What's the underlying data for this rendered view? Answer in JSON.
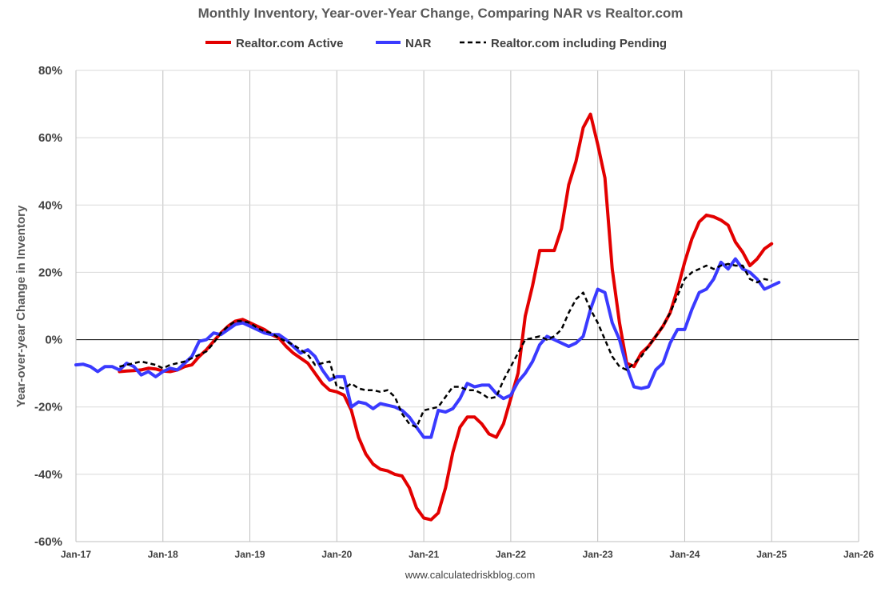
{
  "chart_data": {
    "type": "line",
    "title": "Monthly Inventory, Year-over-Year Change, Comparing NAR vs Realtor.com",
    "ylabel": "Year-over-year Change in Inventory",
    "xlabel": "",
    "source": "www.calculatedriskblog.com",
    "xlim": [
      "Jan-17",
      "Jan-26"
    ],
    "ylim": [
      -60,
      80
    ],
    "yticks": [
      80,
      60,
      40,
      20,
      0,
      -20,
      -40,
      -60
    ],
    "ytick_labels": [
      "80%",
      "60%",
      "40%",
      "20%",
      "0%",
      "-20%",
      "-40%",
      "-60%"
    ],
    "xtick_labels": [
      "Jan-17",
      "Jan-18",
      "Jan-19",
      "Jan-20",
      "Jan-21",
      "Jan-22",
      "Jan-23",
      "Jan-24",
      "Jan-25",
      "Jan-26"
    ],
    "grid": "vertical",
    "legend_position": "top",
    "series": [
      {
        "name": "Realtor.com Active",
        "color": "#e30000",
        "style": "solid",
        "start_month": "Jul-17",
        "values": [
          -9.5,
          -9.3,
          -9.2,
          -9.0,
          -8.5,
          -8.7,
          -9.3,
          -9.5,
          -9.0,
          -8.0,
          -7.5,
          -5.0,
          -3.0,
          -0.5,
          2.0,
          4.0,
          5.5,
          6.0,
          5.0,
          4.0,
          3.0,
          1.5,
          0.5,
          -2.0,
          -4.0,
          -5.5,
          -7.0,
          -10.0,
          -13.0,
          -15.0,
          -15.5,
          -16.5,
          -21.0,
          -29.0,
          -34.0,
          -37.0,
          -38.5,
          -39.0,
          -40.0,
          -40.5,
          -44.0,
          -50.0,
          -53.0,
          -53.5,
          -51.5,
          -44.0,
          -33.5,
          -26.0,
          -23.0,
          -23.0,
          -25.0,
          -28.0,
          -29.0,
          -25.0,
          -17.5,
          -10.0,
          7.0,
          16.0,
          26.5,
          26.5,
          26.5,
          33.0,
          46.0,
          53.0,
          63.0,
          67.0,
          58.0,
          48.0,
          21.0,
          5.0,
          -7.0,
          -8.0,
          -4.0,
          -2.0,
          1.0,
          4.0,
          8.0,
          15.0,
          23.0,
          30.0,
          35.0,
          37.0,
          36.5,
          35.5,
          34.0,
          29.0,
          26.0,
          22.0,
          24.0,
          27.0,
          28.5
        ]
      },
      {
        "name": "NAR",
        "color": "#3a3aff",
        "style": "solid",
        "start_month": "Jan-17",
        "values": [
          -7.5,
          -7.3,
          -8.0,
          -9.5,
          -8.0,
          -8.0,
          -9.0,
          -7.0,
          -8.0,
          -10.5,
          -9.5,
          -11.0,
          -9.5,
          -8.5,
          -9.0,
          -7.0,
          -5.0,
          -0.5,
          0.0,
          2.0,
          1.5,
          3.0,
          4.5,
          5.0,
          4.0,
          3.0,
          2.0,
          1.5,
          1.5,
          0.0,
          -2.0,
          -4.0,
          -3.0,
          -5.0,
          -9.0,
          -12.0,
          -11.0,
          -11.0,
          -20.0,
          -18.5,
          -19.0,
          -20.5,
          -19.0,
          -19.5,
          -20.0,
          -21.0,
          -23.0,
          -26.0,
          -29.0,
          -29.0,
          -21.0,
          -21.5,
          -20.5,
          -17.5,
          -13.0,
          -14.0,
          -13.5,
          -13.5,
          -16.0,
          -17.5,
          -16.5,
          -12.5,
          -10.0,
          -6.5,
          -1.5,
          1.0,
          0.0,
          -1.0,
          -2.0,
          -1.0,
          1.0,
          9.0,
          15.0,
          14.0,
          5.0,
          0.0,
          -8.0,
          -14.0,
          -14.5,
          -14.0,
          -9.0,
          -7.0,
          -1.0,
          3.0,
          3.0,
          9.0,
          14.0,
          15.0,
          18.0,
          23.0,
          21.0,
          24.0,
          21.0,
          20.0,
          18.0,
          15.0,
          16.0,
          17.0
        ]
      },
      {
        "name": "Realtor.com including Pending",
        "color": "#000000",
        "style": "dashed",
        "start_month": "Jul-17",
        "values": [
          -8.0,
          -7.5,
          -7.0,
          -6.5,
          -7.0,
          -7.5,
          -8.5,
          -7.5,
          -7.0,
          -6.5,
          -5.5,
          -4.5,
          -3.5,
          -1.0,
          2.0,
          4.0,
          5.5,
          5.5,
          5.0,
          3.5,
          2.5,
          2.0,
          0.5,
          -0.5,
          -1.5,
          -3.0,
          -4.5,
          -7.5,
          -7.0,
          -6.5,
          -14.0,
          -14.5,
          -13.0,
          -14.5,
          -15.0,
          -15.0,
          -15.5,
          -15.0,
          -17.0,
          -22.0,
          -25.0,
          -26.0,
          -21.0,
          -20.5,
          -20.0,
          -17.0,
          -14.0,
          -14.0,
          -15.0,
          -15.0,
          -16.0,
          -17.5,
          -17.0,
          -12.0,
          -8.0,
          -4.0,
          0.0,
          0.5,
          1.0,
          0.0,
          1.0,
          3.0,
          8.0,
          12.0,
          14.0,
          9.0,
          5.0,
          0.0,
          -5.0,
          -8.0,
          -9.0,
          -7.0,
          -5.0,
          -2.0,
          1.0,
          4.0,
          8.0,
          13.0,
          18.0,
          20.0,
          21.0,
          22.0,
          21.0,
          22.0,
          22.5,
          22.0,
          22.0,
          18.0,
          17.0,
          18.0,
          17.5
        ]
      }
    ]
  }
}
